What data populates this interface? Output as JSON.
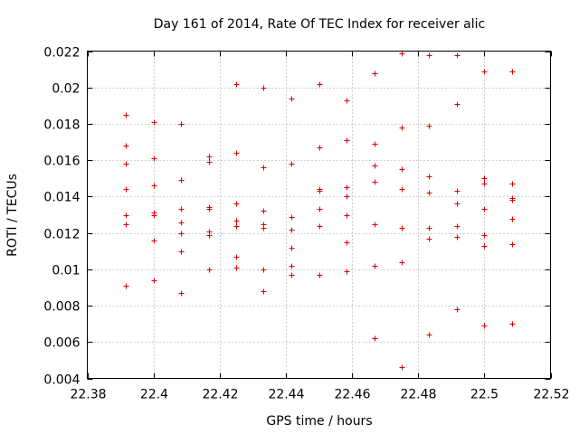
{
  "chart_data": {
    "type": "scatter",
    "title": "Day 161 of 2014, Rate Of TEC Index for receiver alic",
    "xlabel": "GPS time / hours",
    "ylabel": "ROTI / TECUs",
    "xlim": [
      22.38,
      22.52
    ],
    "ylim": [
      0.004,
      0.022
    ],
    "xticks": [
      "22.38",
      "22.4",
      "22.42",
      "22.44",
      "22.46",
      "22.48",
      "22.5",
      "22.52"
    ],
    "yticks": [
      "0.004",
      "0.006",
      "0.008",
      "0.01",
      "0.012",
      "0.014",
      "0.016",
      "0.018",
      "0.02",
      "0.022"
    ],
    "grid": true,
    "marker": "+",
    "color": "#e00000",
    "points": [
      [
        22.3917,
        0.0185
      ],
      [
        22.3917,
        0.0168
      ],
      [
        22.3917,
        0.0158
      ],
      [
        22.3917,
        0.0144
      ],
      [
        22.3917,
        0.013
      ],
      [
        22.3917,
        0.0125
      ],
      [
        22.3917,
        0.0091
      ],
      [
        22.4,
        0.0181
      ],
      [
        22.4,
        0.0161
      ],
      [
        22.4,
        0.0146
      ],
      [
        22.4,
        0.0131
      ],
      [
        22.4,
        0.013
      ],
      [
        22.4,
        0.0116
      ],
      [
        22.4,
        0.0094
      ],
      [
        22.4083,
        0.018
      ],
      [
        22.4083,
        0.0149
      ],
      [
        22.4083,
        0.0133
      ],
      [
        22.4083,
        0.0126
      ],
      [
        22.4083,
        0.012
      ],
      [
        22.4083,
        0.011
      ],
      [
        22.4083,
        0.0087
      ],
      [
        22.4167,
        0.0162
      ],
      [
        22.4167,
        0.0159
      ],
      [
        22.4167,
        0.0134
      ],
      [
        22.4167,
        0.0133
      ],
      [
        22.4167,
        0.0121
      ],
      [
        22.4167,
        0.0119
      ],
      [
        22.4167,
        0.01
      ],
      [
        22.425,
        0.0202
      ],
      [
        22.425,
        0.0164
      ],
      [
        22.425,
        0.0136
      ],
      [
        22.425,
        0.0127
      ],
      [
        22.425,
        0.0124
      ],
      [
        22.425,
        0.0107
      ],
      [
        22.425,
        0.0101
      ],
      [
        22.4333,
        0.02
      ],
      [
        22.4333,
        0.0156
      ],
      [
        22.4333,
        0.0132
      ],
      [
        22.4333,
        0.0125
      ],
      [
        22.4333,
        0.0123
      ],
      [
        22.4333,
        0.01
      ],
      [
        22.4333,
        0.0088
      ],
      [
        22.4417,
        0.0194
      ],
      [
        22.4417,
        0.0158
      ],
      [
        22.4417,
        0.0129
      ],
      [
        22.4417,
        0.0122
      ],
      [
        22.4417,
        0.0112
      ],
      [
        22.4417,
        0.0102
      ],
      [
        22.4417,
        0.0097
      ],
      [
        22.45,
        0.0202
      ],
      [
        22.45,
        0.0167
      ],
      [
        22.45,
        0.0144
      ],
      [
        22.45,
        0.0143
      ],
      [
        22.45,
        0.0133
      ],
      [
        22.45,
        0.0124
      ],
      [
        22.45,
        0.0097
      ],
      [
        22.4583,
        0.0193
      ],
      [
        22.4583,
        0.0171
      ],
      [
        22.4583,
        0.0145
      ],
      [
        22.4583,
        0.014
      ],
      [
        22.4583,
        0.013
      ],
      [
        22.4583,
        0.0115
      ],
      [
        22.4583,
        0.0099
      ],
      [
        22.4667,
        0.0208
      ],
      [
        22.4667,
        0.0169
      ],
      [
        22.4667,
        0.0157
      ],
      [
        22.4667,
        0.0148
      ],
      [
        22.4667,
        0.0125
      ],
      [
        22.4667,
        0.0102
      ],
      [
        22.4667,
        0.0062
      ],
      [
        22.475,
        0.0219
      ],
      [
        22.475,
        0.0178
      ],
      [
        22.475,
        0.0155
      ],
      [
        22.475,
        0.0144
      ],
      [
        22.475,
        0.0123
      ],
      [
        22.475,
        0.0104
      ],
      [
        22.475,
        0.0046
      ],
      [
        22.4833,
        0.0218
      ],
      [
        22.4833,
        0.0179
      ],
      [
        22.4833,
        0.0151
      ],
      [
        22.4833,
        0.0142
      ],
      [
        22.4833,
        0.0123
      ],
      [
        22.4833,
        0.0117
      ],
      [
        22.4833,
        0.0064
      ],
      [
        22.4917,
        0.0218
      ],
      [
        22.4917,
        0.0191
      ],
      [
        22.4917,
        0.0143
      ],
      [
        22.4917,
        0.0136
      ],
      [
        22.4917,
        0.0124
      ],
      [
        22.4917,
        0.0118
      ],
      [
        22.4917,
        0.0078
      ],
      [
        22.5,
        0.0209
      ],
      [
        22.5,
        0.015
      ],
      [
        22.5,
        0.0147
      ],
      [
        22.5,
        0.0133
      ],
      [
        22.5,
        0.0119
      ],
      [
        22.5,
        0.0113
      ],
      [
        22.5,
        0.0069
      ],
      [
        22.5083,
        0.0209
      ],
      [
        22.5083,
        0.0147
      ],
      [
        22.5083,
        0.0139
      ],
      [
        22.5083,
        0.0138
      ],
      [
        22.5083,
        0.0128
      ],
      [
        22.5083,
        0.0114
      ],
      [
        22.5083,
        0.007
      ]
    ]
  }
}
